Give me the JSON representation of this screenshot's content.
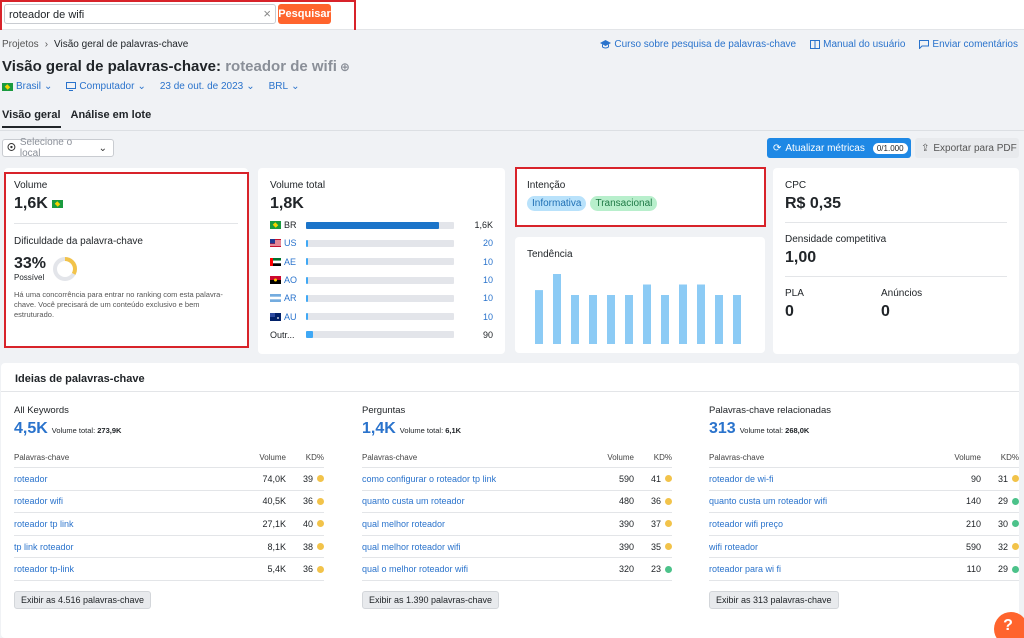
{
  "search": {
    "value": "roteador de wifi",
    "button": "Pesquisar"
  },
  "breadcrumb": {
    "root": "Projetos",
    "current": "Visão geral de palavras-chave"
  },
  "top_links": {
    "course": "Curso sobre pesquisa de palavras-chave",
    "manual": "Manual do usuário",
    "feedback": "Enviar comentários"
  },
  "title": {
    "prefix": "Visão geral de palavras-chave:",
    "keyword": "roteador de wifi"
  },
  "filters": {
    "country": "Brasil",
    "device": "Computador",
    "date": "23 de out. de 2023",
    "currency": "BRL"
  },
  "tabs": {
    "overview": "Visão geral",
    "batch": "Análise em lote"
  },
  "location_select": {
    "placeholder": "Selecione o local"
  },
  "update_button": {
    "label": "Atualizar métricas",
    "count": "0/1.000"
  },
  "export_button": {
    "label": "Exportar para PDF"
  },
  "volume_card": {
    "label": "Volume",
    "value": "1,6K",
    "kd_label": "Dificuldade da palavra-chave",
    "kd_value": "33%",
    "kd_percent": 33,
    "kd_status": "Possível",
    "kd_text": "Há uma concorrência para entrar no ranking com esta palavra-chave. Você precisará de um conteúdo exclusivo e bem estruturado."
  },
  "total_volume_card": {
    "label": "Volume total",
    "value": "1,8K",
    "countries": [
      {
        "code": "BR",
        "value": "1,6K",
        "fraction": 0.9
      },
      {
        "code": "US",
        "value": "20",
        "fraction": 0.012
      },
      {
        "code": "AE",
        "value": "10",
        "fraction": 0.006
      },
      {
        "code": "AO",
        "value": "10",
        "fraction": 0.006
      },
      {
        "code": "AR",
        "value": "10",
        "fraction": 0.006
      },
      {
        "code": "AU",
        "value": "10",
        "fraction": 0.006
      },
      {
        "code": "Outr...",
        "value": "90",
        "fraction": 0.05
      }
    ]
  },
  "intent_card": {
    "label": "Intenção",
    "tags": [
      "Informativa",
      "Transacional"
    ]
  },
  "trend_card": {
    "label": "Tendência",
    "values": [
      0.77,
      1.0,
      0.7,
      0.7,
      0.7,
      0.7,
      0.85,
      0.7,
      0.85,
      0.85,
      0.7,
      0.7
    ]
  },
  "cpc_card": {
    "cpc_label": "CPC",
    "cpc_value": "R$ 0,35",
    "density_label": "Densidade competitiva",
    "density_value": "1,00",
    "pla_label": "PLA",
    "pla_value": "0",
    "ads_label": "Anúncios",
    "ads_value": "0"
  },
  "ideas": {
    "title": "Ideias de palavras-chave",
    "col_keyword": "Palavras-chave",
    "col_volume": "Volume",
    "col_kd": "KD%",
    "total_prefix": "Volume total:",
    "columns": [
      {
        "heading": "All Keywords",
        "count": "4,5K",
        "total": "273,9K",
        "rows": [
          {
            "kw": "roteador",
            "vol": "74,0K",
            "kd": "39",
            "color": "#f2c34a"
          },
          {
            "kw": "roteador wifi",
            "vol": "40,5K",
            "kd": "36",
            "color": "#f2c34a"
          },
          {
            "kw": "roteador tp link",
            "vol": "27,1K",
            "kd": "40",
            "color": "#f2c34a"
          },
          {
            "kw": "tp link roteador",
            "vol": "8,1K",
            "kd": "38",
            "color": "#f2c34a"
          },
          {
            "kw": "roteador tp-link",
            "vol": "5,4K",
            "kd": "36",
            "color": "#f2c34a"
          }
        ],
        "more": "Exibir as 4.516 palavras-chave"
      },
      {
        "heading": "Perguntas",
        "count": "1,4K",
        "total": "6,1K",
        "rows": [
          {
            "kw": "como configurar o roteador tp link",
            "vol": "590",
            "kd": "41",
            "color": "#f2c34a"
          },
          {
            "kw": "quanto custa um roteador",
            "vol": "480",
            "kd": "36",
            "color": "#f2c34a"
          },
          {
            "kw": "qual melhor roteador",
            "vol": "390",
            "kd": "37",
            "color": "#f2c34a"
          },
          {
            "kw": "qual melhor roteador wifi",
            "vol": "390",
            "kd": "35",
            "color": "#f2c34a"
          },
          {
            "kw": "qual o melhor roteador wifi",
            "vol": "320",
            "kd": "23",
            "color": "#4cc28a"
          }
        ],
        "more": "Exibir as 1.390 palavras-chave"
      },
      {
        "heading": "Palavras-chave relacionadas",
        "count": "313",
        "total": "268,0K",
        "rows": [
          {
            "kw": "roteador de wi-fi",
            "vol": "90",
            "kd": "31",
            "color": "#f2c34a"
          },
          {
            "kw": "quanto custa um roteador wifi",
            "vol": "140",
            "kd": "29",
            "color": "#4cc28a"
          },
          {
            "kw": "roteador wifi preço",
            "vol": "210",
            "kd": "30",
            "color": "#4cc28a"
          },
          {
            "kw": "wifi roteador",
            "vol": "590",
            "kd": "32",
            "color": "#f2c34a"
          },
          {
            "kw": "roteador para wi fi",
            "vol": "110",
            "kd": "29",
            "color": "#4cc28a"
          }
        ],
        "more": "Exibir as 313 palavras-chave"
      }
    ]
  }
}
